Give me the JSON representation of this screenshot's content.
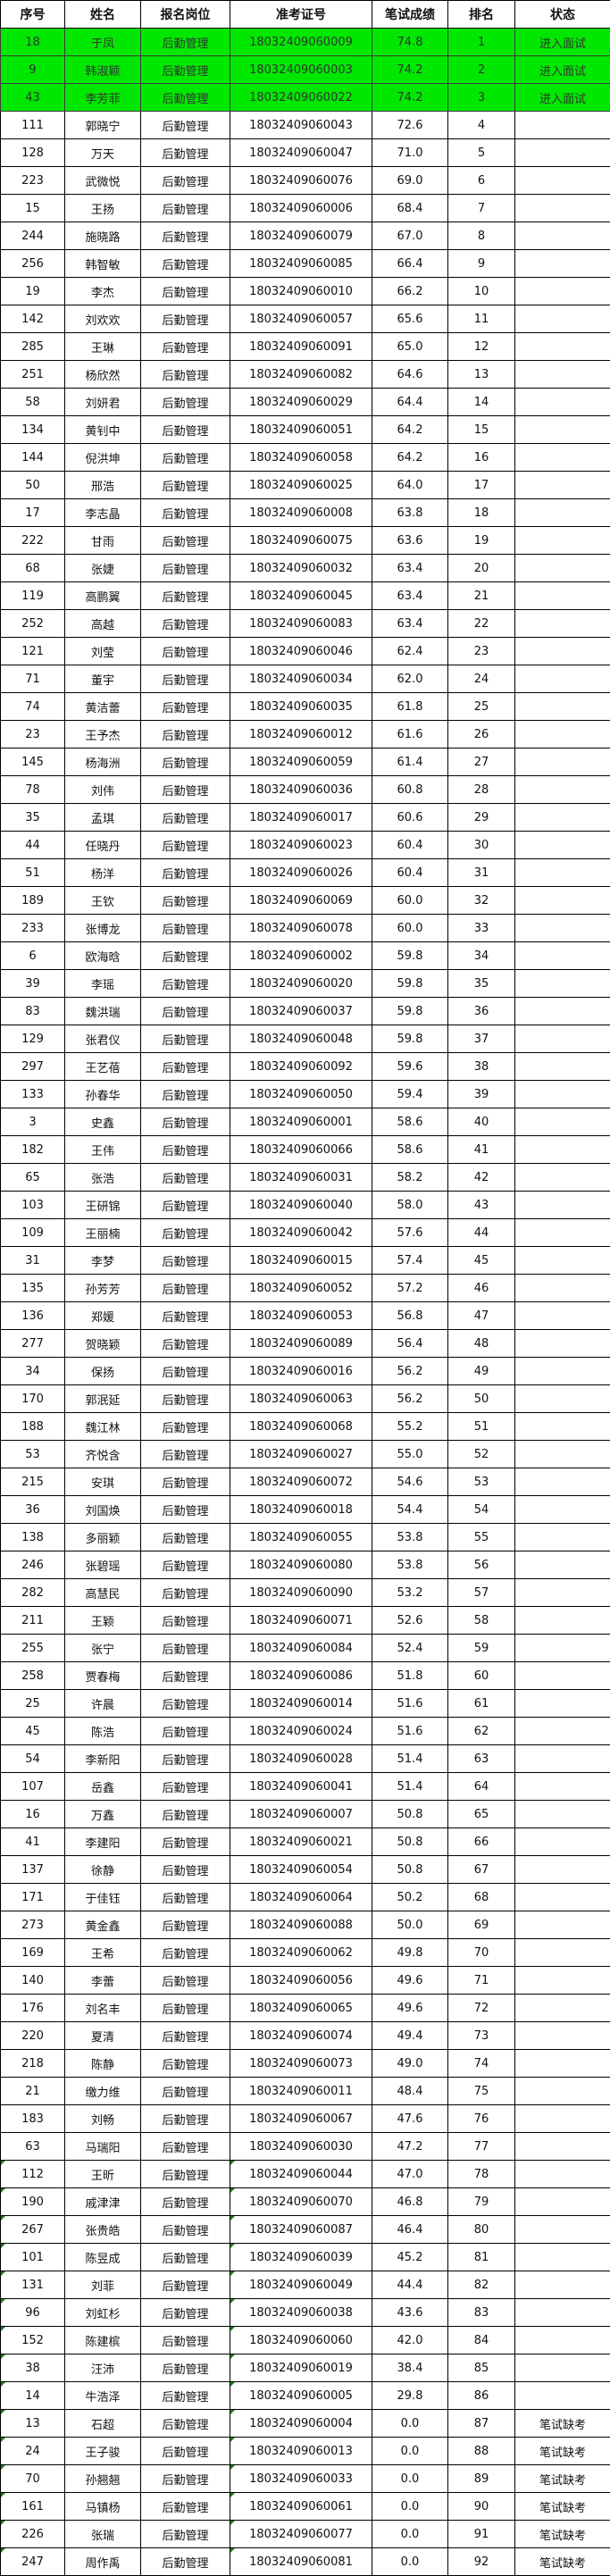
{
  "headers": [
    "序号",
    "姓名",
    "报名岗位",
    "准考证号",
    "笔试成绩",
    "排名",
    "状态"
  ],
  "colors": {
    "pass_row": "#00e800",
    "border": "#000000"
  },
  "rows": [
    [
      "18",
      "于凤",
      "后勤管理",
      "18032409060009",
      "74.8",
      "1",
      "进入面试"
    ],
    [
      "9",
      "韩淑颖",
      "后勤管理",
      "18032409060003",
      "74.2",
      "2",
      "进入面试"
    ],
    [
      "43",
      "李芳菲",
      "后勤管理",
      "18032409060022",
      "74.2",
      "3",
      "进入面试"
    ],
    [
      "111",
      "郭晓宁",
      "后勤管理",
      "18032409060043",
      "72.6",
      "4",
      ""
    ],
    [
      "128",
      "万天",
      "后勤管理",
      "18032409060047",
      "71.0",
      "5",
      ""
    ],
    [
      "223",
      "武微悦",
      "后勤管理",
      "18032409060076",
      "69.0",
      "6",
      ""
    ],
    [
      "15",
      "王扬",
      "后勤管理",
      "18032409060006",
      "68.4",
      "7",
      ""
    ],
    [
      "244",
      "施晓路",
      "后勤管理",
      "18032409060079",
      "67.0",
      "8",
      ""
    ],
    [
      "256",
      "韩智敏",
      "后勤管理",
      "18032409060085",
      "66.4",
      "9",
      ""
    ],
    [
      "19",
      "李杰",
      "后勤管理",
      "18032409060010",
      "66.2",
      "10",
      ""
    ],
    [
      "142",
      "刘欢欢",
      "后勤管理",
      "18032409060057",
      "65.6",
      "11",
      ""
    ],
    [
      "285",
      "王琳",
      "后勤管理",
      "18032409060091",
      "65.0",
      "12",
      ""
    ],
    [
      "251",
      "杨欣然",
      "后勤管理",
      "18032409060082",
      "64.6",
      "13",
      ""
    ],
    [
      "58",
      "刘妍君",
      "后勤管理",
      "18032409060029",
      "64.4",
      "14",
      ""
    ],
    [
      "134",
      "黄钊中",
      "后勤管理",
      "18032409060051",
      "64.2",
      "15",
      ""
    ],
    [
      "144",
      "倪洪坤",
      "后勤管理",
      "18032409060058",
      "64.2",
      "16",
      ""
    ],
    [
      "50",
      "邢浩",
      "后勤管理",
      "18032409060025",
      "64.0",
      "17",
      ""
    ],
    [
      "17",
      "李志晶",
      "后勤管理",
      "18032409060008",
      "63.8",
      "18",
      ""
    ],
    [
      "222",
      "甘雨",
      "后勤管理",
      "18032409060075",
      "63.6",
      "19",
      ""
    ],
    [
      "68",
      "张婕",
      "后勤管理",
      "18032409060032",
      "63.4",
      "20",
      ""
    ],
    [
      "119",
      "高鹏翼",
      "后勤管理",
      "18032409060045",
      "63.4",
      "21",
      ""
    ],
    [
      "252",
      "高越",
      "后勤管理",
      "18032409060083",
      "63.4",
      "22",
      ""
    ],
    [
      "121",
      "刘莹",
      "后勤管理",
      "18032409060046",
      "62.4",
      "23",
      ""
    ],
    [
      "71",
      "董宇",
      "后勤管理",
      "18032409060034",
      "62.0",
      "24",
      ""
    ],
    [
      "74",
      "黄洁蕾",
      "后勤管理",
      "18032409060035",
      "61.8",
      "25",
      ""
    ],
    [
      "23",
      "王予杰",
      "后勤管理",
      "18032409060012",
      "61.6",
      "26",
      ""
    ],
    [
      "145",
      "杨海洲",
      "后勤管理",
      "18032409060059",
      "61.4",
      "27",
      ""
    ],
    [
      "78",
      "刘伟",
      "后勤管理",
      "18032409060036",
      "60.8",
      "28",
      ""
    ],
    [
      "35",
      "孟琪",
      "后勤管理",
      "18032409060017",
      "60.6",
      "29",
      ""
    ],
    [
      "44",
      "任晓丹",
      "后勤管理",
      "18032409060023",
      "60.4",
      "30",
      ""
    ],
    [
      "51",
      "杨洋",
      "后勤管理",
      "18032409060026",
      "60.4",
      "31",
      ""
    ],
    [
      "189",
      "王钦",
      "后勤管理",
      "18032409060069",
      "60.0",
      "32",
      ""
    ],
    [
      "233",
      "张博龙",
      "后勤管理",
      "18032409060078",
      "60.0",
      "33",
      ""
    ],
    [
      "6",
      "欧海晗",
      "后勤管理",
      "18032409060002",
      "59.8",
      "34",
      ""
    ],
    [
      "39",
      "李瑶",
      "后勤管理",
      "18032409060020",
      "59.8",
      "35",
      ""
    ],
    [
      "83",
      "魏洪瑞",
      "后勤管理",
      "18032409060037",
      "59.8",
      "36",
      ""
    ],
    [
      "129",
      "张君仪",
      "后勤管理",
      "18032409060048",
      "59.8",
      "37",
      ""
    ],
    [
      "297",
      "王艺蓓",
      "后勤管理",
      "18032409060092",
      "59.6",
      "38",
      ""
    ],
    [
      "133",
      "孙春华",
      "后勤管理",
      "18032409060050",
      "59.4",
      "39",
      ""
    ],
    [
      "3",
      "史鑫",
      "后勤管理",
      "18032409060001",
      "58.6",
      "40",
      ""
    ],
    [
      "182",
      "王伟",
      "后勤管理",
      "18032409060066",
      "58.6",
      "41",
      ""
    ],
    [
      "65",
      "张浩",
      "后勤管理",
      "18032409060031",
      "58.2",
      "42",
      ""
    ],
    [
      "103",
      "王研锦",
      "后勤管理",
      "18032409060040",
      "58.0",
      "43",
      ""
    ],
    [
      "109",
      "王丽楠",
      "后勤管理",
      "18032409060042",
      "57.6",
      "44",
      ""
    ],
    [
      "31",
      "李梦",
      "后勤管理",
      "18032409060015",
      "57.4",
      "45",
      ""
    ],
    [
      "135",
      "孙芳芳",
      "后勤管理",
      "18032409060052",
      "57.2",
      "46",
      ""
    ],
    [
      "136",
      "郑媛",
      "后勤管理",
      "18032409060053",
      "56.8",
      "47",
      ""
    ],
    [
      "277",
      "贺晓颖",
      "后勤管理",
      "18032409060089",
      "56.4",
      "48",
      ""
    ],
    [
      "34",
      "保扬",
      "后勤管理",
      "18032409060016",
      "56.2",
      "49",
      ""
    ],
    [
      "170",
      "郭泯延",
      "后勤管理",
      "18032409060063",
      "56.2",
      "50",
      ""
    ],
    [
      "188",
      "魏江林",
      "后勤管理",
      "18032409060068",
      "55.2",
      "51",
      ""
    ],
    [
      "53",
      "齐悦含",
      "后勤管理",
      "18032409060027",
      "55.0",
      "52",
      ""
    ],
    [
      "215",
      "安琪",
      "后勤管理",
      "18032409060072",
      "54.6",
      "53",
      ""
    ],
    [
      "36",
      "刘国焕",
      "后勤管理",
      "18032409060018",
      "54.4",
      "54",
      ""
    ],
    [
      "138",
      "多丽颖",
      "后勤管理",
      "18032409060055",
      "53.8",
      "55",
      ""
    ],
    [
      "246",
      "张碧瑶",
      "后勤管理",
      "18032409060080",
      "53.8",
      "56",
      ""
    ],
    [
      "282",
      "高慧民",
      "后勤管理",
      "18032409060090",
      "53.2",
      "57",
      ""
    ],
    [
      "211",
      "王颖",
      "后勤管理",
      "18032409060071",
      "52.6",
      "58",
      ""
    ],
    [
      "255",
      "张宁",
      "后勤管理",
      "18032409060084",
      "52.4",
      "59",
      ""
    ],
    [
      "258",
      "贾春梅",
      "后勤管理",
      "18032409060086",
      "51.8",
      "60",
      ""
    ],
    [
      "25",
      "许晨",
      "后勤管理",
      "18032409060014",
      "51.6",
      "61",
      ""
    ],
    [
      "45",
      "陈浩",
      "后勤管理",
      "18032409060024",
      "51.6",
      "62",
      ""
    ],
    [
      "54",
      "李新阳",
      "后勤管理",
      "18032409060028",
      "51.4",
      "63",
      ""
    ],
    [
      "107",
      "岳鑫",
      "后勤管理",
      "18032409060041",
      "51.4",
      "64",
      ""
    ],
    [
      "16",
      "万鑫",
      "后勤管理",
      "18032409060007",
      "50.8",
      "65",
      ""
    ],
    [
      "41",
      "李建阳",
      "后勤管理",
      "18032409060021",
      "50.8",
      "66",
      ""
    ],
    [
      "137",
      "徐静",
      "后勤管理",
      "18032409060054",
      "50.8",
      "67",
      ""
    ],
    [
      "171",
      "于佳钰",
      "后勤管理",
      "18032409060064",
      "50.2",
      "68",
      ""
    ],
    [
      "273",
      "黄金鑫",
      "后勤管理",
      "18032409060088",
      "50.0",
      "69",
      ""
    ],
    [
      "169",
      "王希",
      "后勤管理",
      "18032409060062",
      "49.8",
      "70",
      ""
    ],
    [
      "140",
      "李蕾",
      "后勤管理",
      "18032409060056",
      "49.6",
      "71",
      ""
    ],
    [
      "176",
      "刘名丰",
      "后勤管理",
      "18032409060065",
      "49.6",
      "72",
      ""
    ],
    [
      "220",
      "夏清",
      "后勤管理",
      "18032409060074",
      "49.4",
      "73",
      ""
    ],
    [
      "218",
      "陈静",
      "后勤管理",
      "18032409060073",
      "49.0",
      "74",
      ""
    ],
    [
      "21",
      "缴力维",
      "后勤管理",
      "18032409060011",
      "48.4",
      "75",
      ""
    ],
    [
      "183",
      "刘畅",
      "后勤管理",
      "18032409060067",
      "47.6",
      "76",
      ""
    ],
    [
      "63",
      "马瑞阳",
      "后勤管理",
      "18032409060030",
      "47.2",
      "77",
      ""
    ],
    [
      "112",
      "王昕",
      "后勤管理",
      "18032409060044",
      "47.0",
      "78",
      ""
    ],
    [
      "190",
      "戚津津",
      "后勤管理",
      "18032409060070",
      "46.8",
      "79",
      ""
    ],
    [
      "267",
      "张贵皓",
      "后勤管理",
      "18032409060087",
      "46.4",
      "80",
      ""
    ],
    [
      "101",
      "陈昱成",
      "后勤管理",
      "18032409060039",
      "45.2",
      "81",
      ""
    ],
    [
      "131",
      "刘菲",
      "后勤管理",
      "18032409060049",
      "44.4",
      "82",
      ""
    ],
    [
      "96",
      "刘虹杉",
      "后勤管理",
      "18032409060038",
      "43.6",
      "83",
      ""
    ],
    [
      "152",
      "陈建槟",
      "后勤管理",
      "18032409060060",
      "42.0",
      "84",
      ""
    ],
    [
      "38",
      "汪沛",
      "后勤管理",
      "18032409060019",
      "38.4",
      "85",
      ""
    ],
    [
      "14",
      "牛浩泽",
      "后勤管理",
      "18032409060005",
      "29.8",
      "86",
      ""
    ],
    [
      "13",
      "石超",
      "后勤管理",
      "18032409060004",
      "0.0",
      "87",
      "笔试缺考"
    ],
    [
      "24",
      "王子骏",
      "后勤管理",
      "18032409060013",
      "0.0",
      "88",
      "笔试缺考"
    ],
    [
      "70",
      "孙翘翘",
      "后勤管理",
      "18032409060033",
      "0.0",
      "89",
      "笔试缺考"
    ],
    [
      "161",
      "马镇杨",
      "后勤管理",
      "18032409060061",
      "0.0",
      "90",
      "笔试缺考"
    ],
    [
      "226",
      "张瑞",
      "后勤管理",
      "18032409060077",
      "0.0",
      "91",
      "笔试缺考"
    ],
    [
      "247",
      "周作禹",
      "后勤管理",
      "18032409060081",
      "0.0",
      "92",
      "笔试缺考"
    ]
  ]
}
